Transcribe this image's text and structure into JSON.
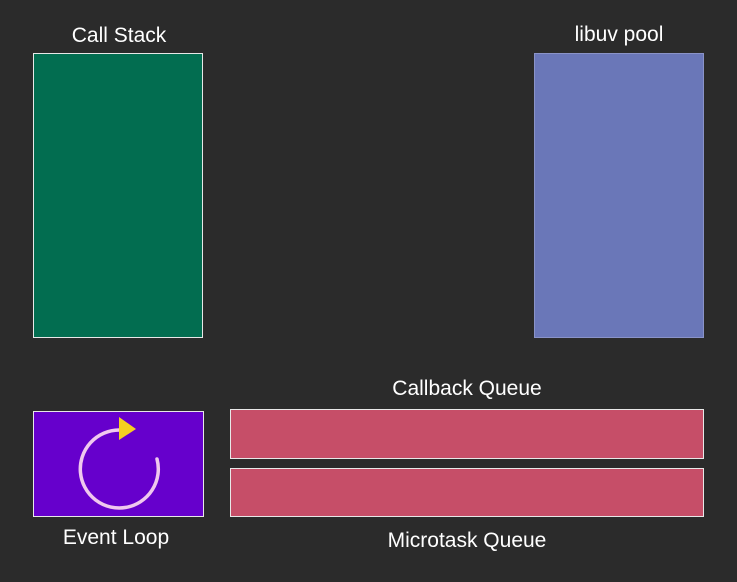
{
  "labels": {
    "call_stack": "Call Stack",
    "libuv_pool": "libuv pool",
    "event_loop": "Event Loop",
    "callback_queue": "Callback Queue",
    "microtask_queue": "Microtask Queue"
  },
  "colors": {
    "background": "#2b2b2b",
    "call_stack": "#026d50",
    "libuv_pool": "#6a77b8",
    "event_loop": "#6600cc",
    "callback_queue": "#c64e68",
    "microtask_queue": "#c64e68",
    "loop_arrow": "#f0c8ee",
    "loop_arrowhead": "#f5d020"
  },
  "icons": {
    "event_loop": "circular-arrow-icon"
  }
}
